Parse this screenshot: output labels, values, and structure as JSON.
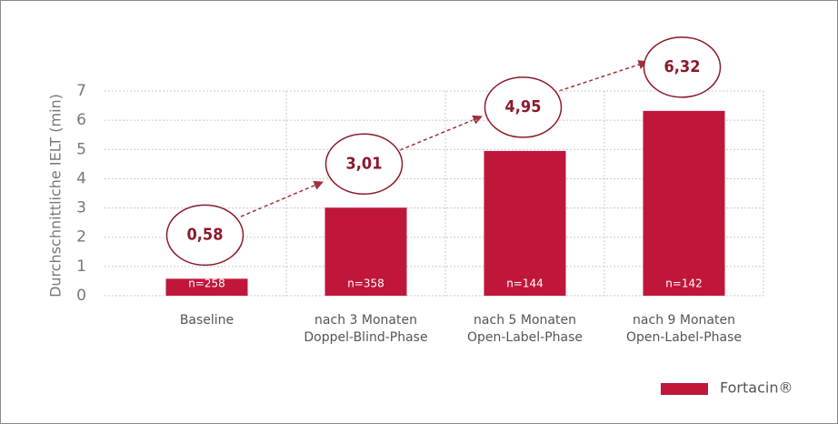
{
  "chart_data": {
    "type": "bar",
    "y_label": "Durchschnittliche IELT (min)",
    "categories": [
      [
        "Baseline"
      ],
      [
        "nach 3 Monaten",
        "Doppel-Blind-Phase"
      ],
      [
        "nach 5 Monaten",
        "Open-Label-Phase"
      ],
      [
        "nach 9 Monaten",
        "Open-Label-Phase"
      ]
    ],
    "series": [
      {
        "name": "Fortacin®",
        "color": "#c0163a",
        "values": [
          0.58,
          3.01,
          4.95,
          6.32
        ],
        "value_labels": [
          "0,58",
          "3,01",
          "4,95",
          "6,32"
        ],
        "sample_labels": [
          "n=258",
          "n=358",
          "n=144",
          "n=142"
        ]
      }
    ],
    "ylim": [
      0,
      7
    ],
    "yticks": [
      0,
      1,
      2,
      3,
      4,
      5,
      6,
      7
    ],
    "grid": true,
    "legend": "bottom-right"
  }
}
